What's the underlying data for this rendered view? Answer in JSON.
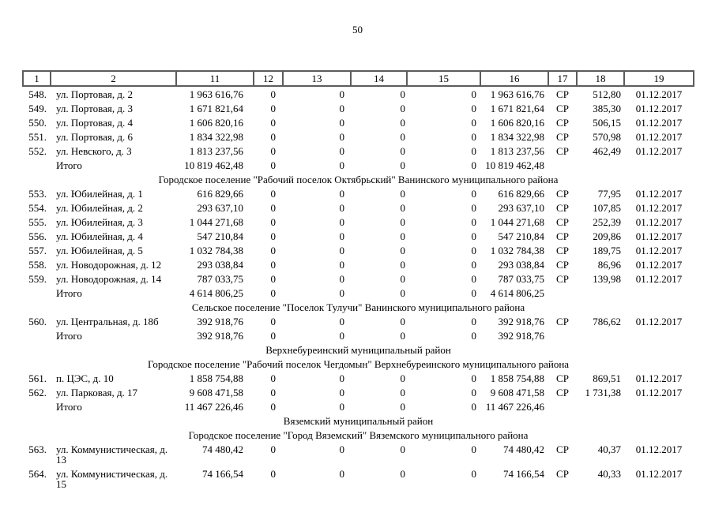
{
  "page": {
    "number": "50"
  },
  "table": {
    "headers": [
      "1",
      "2",
      "11",
      "12",
      "13",
      "14",
      "15",
      "16",
      "17",
      "18",
      "19"
    ],
    "rows": [
      {
        "type": "data",
        "num": "548.",
        "address": "ул. Портовая, д. 2",
        "c11": "1 963 616,76",
        "c12": "0",
        "c13": "0",
        "c14": "0",
        "c15": "0",
        "c16": "1 963 616,76",
        "c17": "СР",
        "c18": "512,80",
        "c19": "01.12.2017"
      },
      {
        "type": "data",
        "num": "549.",
        "address": "ул. Портовая, д. 3",
        "c11": "1 671 821,64",
        "c12": "0",
        "c13": "0",
        "c14": "0",
        "c15": "0",
        "c16": "1 671 821,64",
        "c17": "СР",
        "c18": "385,30",
        "c19": "01.12.2017"
      },
      {
        "type": "data",
        "num": "550.",
        "address": "ул. Портовая, д. 4",
        "c11": "1 606 820,16",
        "c12": "0",
        "c13": "0",
        "c14": "0",
        "c15": "0",
        "c16": "1 606 820,16",
        "c17": "СР",
        "c18": "506,15",
        "c19": "01.12.2017"
      },
      {
        "type": "data",
        "num": "551.",
        "address": "ул. Портовая, д. 6",
        "c11": "1 834 322,98",
        "c12": "0",
        "c13": "0",
        "c14": "0",
        "c15": "0",
        "c16": "1 834 322,98",
        "c17": "СР",
        "c18": "570,98",
        "c19": "01.12.2017"
      },
      {
        "type": "data",
        "num": "552.",
        "address": "ул. Невского, д. 3",
        "c11": "1 813 237,56",
        "c12": "0",
        "c13": "0",
        "c14": "0",
        "c15": "0",
        "c16": "1 813 237,56",
        "c17": "СР",
        "c18": "462,49",
        "c19": "01.12.2017"
      },
      {
        "type": "total",
        "label": "Итого",
        "c11": "10 819 462,48",
        "c12": "0",
        "c13": "0",
        "c14": "0",
        "c15": "0",
        "c16": "10 819 462,48"
      },
      {
        "type": "section",
        "label": "Городское поселение \"Рабочий поселок Октябрьский\" Ванинского муниципального района"
      },
      {
        "type": "data",
        "num": "553.",
        "address": "ул. Юбилейная, д. 1",
        "c11": "616 829,66",
        "c12": "0",
        "c13": "0",
        "c14": "0",
        "c15": "0",
        "c16": "616 829,66",
        "c17": "СР",
        "c18": "77,95",
        "c19": "01.12.2017"
      },
      {
        "type": "data",
        "num": "554.",
        "address": "ул. Юбилейная, д. 2",
        "c11": "293 637,10",
        "c12": "0",
        "c13": "0",
        "c14": "0",
        "c15": "0",
        "c16": "293 637,10",
        "c17": "СР",
        "c18": "107,85",
        "c19": "01.12.2017"
      },
      {
        "type": "data",
        "num": "555.",
        "address": "ул. Юбилейная, д. 3",
        "c11": "1 044 271,68",
        "c12": "0",
        "c13": "0",
        "c14": "0",
        "c15": "0",
        "c16": "1 044 271,68",
        "c17": "СР",
        "c18": "252,39",
        "c19": "01.12.2017"
      },
      {
        "type": "data",
        "num": "556.",
        "address": "ул. Юбилейная, д. 4",
        "c11": "547 210,84",
        "c12": "0",
        "c13": "0",
        "c14": "0",
        "c15": "0",
        "c16": "547 210,84",
        "c17": "СР",
        "c18": "209,86",
        "c19": "01.12.2017"
      },
      {
        "type": "data",
        "num": "557.",
        "address": "ул. Юбилейная, д. 5",
        "c11": "1 032 784,38",
        "c12": "0",
        "c13": "0",
        "c14": "0",
        "c15": "0",
        "c16": "1 032 784,38",
        "c17": "СР",
        "c18": "189,75",
        "c19": "01.12.2017"
      },
      {
        "type": "data",
        "num": "558.",
        "address": "ул. Новодорожная, д. 12",
        "c11": "293 038,84",
        "c12": "0",
        "c13": "0",
        "c14": "0",
        "c15": "0",
        "c16": "293 038,84",
        "c17": "СР",
        "c18": "86,96",
        "c19": "01.12.2017"
      },
      {
        "type": "data",
        "num": "559.",
        "address": "ул. Новодорожная, д. 14",
        "c11": "787 033,75",
        "c12": "0",
        "c13": "0",
        "c14": "0",
        "c15": "0",
        "c16": "787 033,75",
        "c17": "СР",
        "c18": "139,98",
        "c19": "01.12.2017"
      },
      {
        "type": "total",
        "label": "Итого",
        "c11": "4 614 806,25",
        "c12": "0",
        "c13": "0",
        "c14": "0",
        "c15": "0",
        "c16": "4 614 806,25"
      },
      {
        "type": "section",
        "label": "Сельское поселение \"Поселок Тулучи\" Ванинского муниципального района"
      },
      {
        "type": "data",
        "num": "560.",
        "address": "ул. Центральная, д. 18б",
        "c11": "392 918,76",
        "c12": "0",
        "c13": "0",
        "c14": "0",
        "c15": "0",
        "c16": "392 918,76",
        "c17": "СР",
        "c18": "786,62",
        "c19": "01.12.2017"
      },
      {
        "type": "total",
        "label": "Итого",
        "c11": "392 918,76",
        "c12": "0",
        "c13": "0",
        "c14": "0",
        "c15": "0",
        "c16": "392 918,76"
      },
      {
        "type": "section",
        "label": "Верхнебуреинский муниципальный район"
      },
      {
        "type": "section",
        "label": "Городское поселение \"Рабочий поселок Чегдомын\" Верхнебуреинского муниципального района"
      },
      {
        "type": "data",
        "num": "561.",
        "address": "п. ЦЭС, д. 10",
        "c11": "1 858 754,88",
        "c12": "0",
        "c13": "0",
        "c14": "0",
        "c15": "0",
        "c16": "1 858 754,88",
        "c17": "СР",
        "c18": "869,51",
        "c19": "01.12.2017"
      },
      {
        "type": "data",
        "num": "562.",
        "address": "ул. Парковая, д. 17",
        "c11": "9 608 471,58",
        "c12": "0",
        "c13": "0",
        "c14": "0",
        "c15": "0",
        "c16": "9 608 471,58",
        "c17": "СР",
        "c18": "1 731,38",
        "c19": "01.12.2017"
      },
      {
        "type": "total",
        "label": "Итого",
        "c11": "11 467 226,46",
        "c12": "0",
        "c13": "0",
        "c14": "0",
        "c15": "0",
        "c16": "11 467 226,46"
      },
      {
        "type": "section",
        "label": "Вяземский муниципальный район"
      },
      {
        "type": "section",
        "label": "Городское поселение \"Город Вяземский\" Вяземского муниципального района"
      },
      {
        "type": "data",
        "num": "563.",
        "address": "ул. Коммунистическая, д. 13",
        "c11": "74 480,42",
        "c12": "0",
        "c13": "0",
        "c14": "0",
        "c15": "0",
        "c16": "74 480,42",
        "c17": "СР",
        "c18": "40,37",
        "c19": "01.12.2017"
      },
      {
        "type": "data",
        "num": "564.",
        "address": "ул. Коммунистическая, д. 15",
        "c11": "74 166,54",
        "c12": "0",
        "c13": "0",
        "c14": "0",
        "c15": "0",
        "c16": "74 166,54",
        "c17": "СР",
        "c18": "40,33",
        "c19": "01.12.2017"
      }
    ]
  }
}
